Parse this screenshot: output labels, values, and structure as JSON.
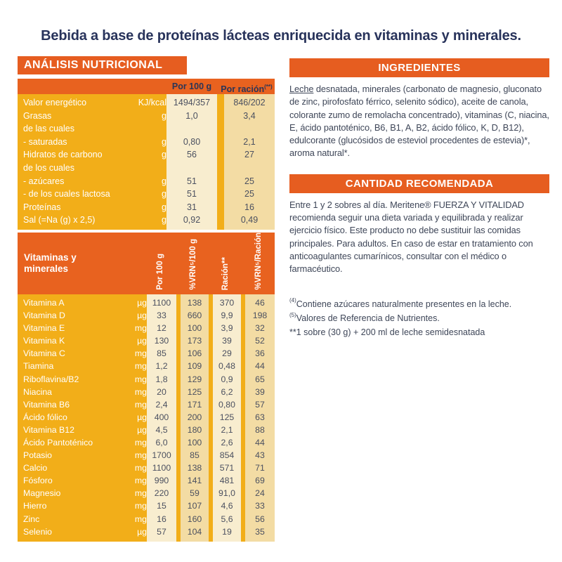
{
  "title": "Bebida a base de proteínas lácteas enriquecida en vitaminas y minerales.",
  "colors": {
    "orange": "#E65D20",
    "gold": "#F2AE19",
    "cream": "#F8EDCF",
    "beige": "#F3DCA4",
    "navy": "#28335B",
    "value_text": "#4B5060"
  },
  "nutrition_panel": {
    "header": "ANÁLISIS NUTRICIONAL",
    "col_headers": {
      "per100": "Por 100 g",
      "racion": "Por ración",
      "racion_sup": "(**)"
    },
    "rows": [
      {
        "label": "Valor energético",
        "unit": "KJ/kcal",
        "per100": "1494/357",
        "racion": "846/202"
      },
      {
        "label": "Grasas",
        "unit": "g",
        "per100": "1,0",
        "racion": "3,4"
      },
      {
        "label": "de las cuales",
        "unit": "",
        "per100": "",
        "racion": ""
      },
      {
        "label": "- saturadas",
        "unit": "g",
        "per100": "0,80",
        "racion": "2,1"
      },
      {
        "label": "Hidratos de carbono",
        "unit": "g",
        "per100": "56",
        "racion": "27"
      },
      {
        "label": "de los cuales",
        "unit": "",
        "per100": "",
        "racion": ""
      },
      {
        "label": "- azúcares",
        "unit": "g",
        "per100": "51",
        "racion": "25"
      },
      {
        "label": "- de los cuales lactosa",
        "unit": "g",
        "per100": "51",
        "racion": "25"
      },
      {
        "label": "Proteínas",
        "unit": "g",
        "per100": "31",
        "racion": "16"
      },
      {
        "label": "Sal (=Na (g) x 2,5)",
        "unit": "g",
        "per100": "0,92",
        "racion": "0,49"
      }
    ]
  },
  "vitamins_panel": {
    "header_line1": "Vitaminas y",
    "header_line2": "minerales",
    "col_headers": [
      "Por 100 g",
      "%VRN⁵/100 g",
      "Ración**",
      "%VRN⁵/Ración"
    ],
    "rows": [
      {
        "label": "Vitamina A",
        "unit": "µg",
        "values": [
          "1100",
          "138",
          "370",
          "46"
        ]
      },
      {
        "label": "Vitamina D",
        "unit": "µg",
        "values": [
          "33",
          "660",
          "9,9",
          "198"
        ]
      },
      {
        "label": "Vitamina E",
        "unit": "mg",
        "values": [
          "12",
          "100",
          "3,9",
          "32"
        ]
      },
      {
        "label": "Vitamina K",
        "unit": "µg",
        "values": [
          "130",
          "173",
          "39",
          "52"
        ]
      },
      {
        "label": "Vitamina C",
        "unit": "mg",
        "values": [
          "85",
          "106",
          "29",
          "36"
        ]
      },
      {
        "label": "Tiamina",
        "unit": "mg",
        "values": [
          "1,2",
          "109",
          "0,48",
          "44"
        ]
      },
      {
        "label": "Riboflavina/B2",
        "unit": "mg",
        "values": [
          "1,8",
          "129",
          "0,9",
          "65"
        ]
      },
      {
        "label": "Niacina",
        "unit": "mg",
        "values": [
          "20",
          "125",
          "6,2",
          "39"
        ]
      },
      {
        "label": "Vitamina B6",
        "unit": "mg",
        "values": [
          "2,4",
          "171",
          "0,80",
          "57"
        ]
      },
      {
        "label": "Ácido fólico",
        "unit": "µg",
        "values": [
          "400",
          "200",
          "125",
          "63"
        ]
      },
      {
        "label": "Vitamina B12",
        "unit": "µg",
        "values": [
          "4,5",
          "180",
          "2,1",
          "88"
        ]
      },
      {
        "label": "Ácido Pantoténico",
        "unit": "mg",
        "values": [
          "6,0",
          "100",
          "2,6",
          "44"
        ]
      },
      {
        "label": "Potasio",
        "unit": "mg",
        "values": [
          "1700",
          "85",
          "854",
          "43"
        ]
      },
      {
        "label": "Calcio",
        "unit": "mg",
        "values": [
          "1100",
          "138",
          "571",
          "71"
        ]
      },
      {
        "label": "Fósforo",
        "unit": "mg",
        "values": [
          "990",
          "141",
          "481",
          "69"
        ]
      },
      {
        "label": "Magnesio",
        "unit": "mg",
        "values": [
          "220",
          "59",
          "91,0",
          "24"
        ]
      },
      {
        "label": "Hierro",
        "unit": "mg",
        "values": [
          "15",
          "107",
          "4,6",
          "33"
        ]
      },
      {
        "label": "Zinc",
        "unit": "mg",
        "values": [
          "16",
          "160",
          "5,6",
          "56"
        ]
      },
      {
        "label": "Selenio",
        "unit": "µg",
        "values": [
          "57",
          "104",
          "19",
          "35"
        ]
      }
    ]
  },
  "ingredients": {
    "header": "INGREDIENTES",
    "lead": "Leche",
    "text": " desnatada, minerales (carbonato de magnesio, gluconato de zinc, pirofosfato férrico, selenito sódico), aceite de canola, colorante zumo de remolacha concentrado), vitaminas (C, niacina, E, ácido pantoténico, B6, B1, A, B2, ácido fólico, K, D, B12), edulcorante (glucósidos de esteviol procedentes de estevia)*, aroma natural*."
  },
  "recommended": {
    "header": "CANTIDAD RECOMENDADA",
    "text": "Entre 1 y 2 sobres al día. Meritene® FUERZA Y VITALIDAD recomienda seguir una dieta variada y equilibrada y realizar ejercicio físico. Este producto no debe sustituir las comidas principales. Para adultos. En caso de estar en tratamiento con anticoagulantes cumarínicos, consultar con el médico o farmacéutico."
  },
  "footnotes": [
    {
      "sup": "(4)",
      "text": "Contiene azúcares naturalmente presentes en la leche."
    },
    {
      "sup": "(5)",
      "text": "Valores de Referencia de Nutrientes."
    },
    {
      "sup": "",
      "text": "**1 sobre (30 g) + 200 ml de leche semidesnatada"
    }
  ]
}
